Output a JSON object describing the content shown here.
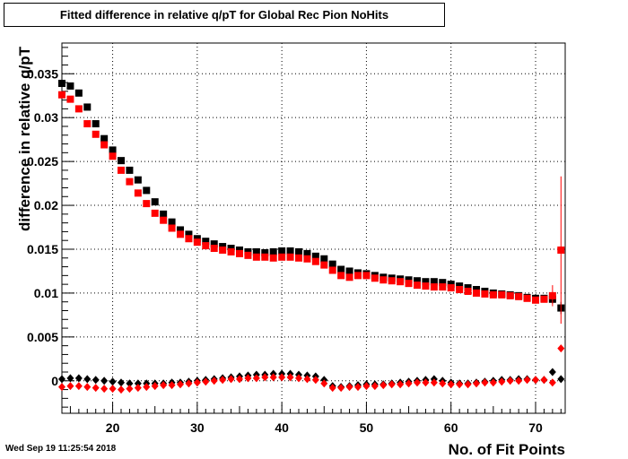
{
  "chart_data": {
    "type": "scatter",
    "title": "Fitted difference in relative q/pT for Global Rec Pion NoHits",
    "xlabel": "No. of Fit Points",
    "ylabel": "difference in relative q/pT",
    "xlim": [
      14,
      73.5
    ],
    "ylim": [
      -0.0037,
      0.0385
    ],
    "x_ticks": [
      20,
      30,
      40,
      50,
      60,
      70
    ],
    "x_tick_labels": [
      "20",
      "30",
      "40",
      "50",
      "60",
      "70"
    ],
    "y_ticks": [
      0,
      0.005,
      0.01,
      0.015,
      0.02,
      0.025,
      0.03,
      0.035
    ],
    "y_tick_labels": [
      "0",
      "0.005",
      "0.01",
      "0.015",
      "0.02",
      "0.025",
      "0.03",
      "0.035"
    ],
    "grid": true,
    "x": [
      14,
      15,
      16,
      17,
      18,
      19,
      20,
      21,
      22,
      23,
      24,
      25,
      26,
      27,
      28,
      29,
      30,
      31,
      32,
      33,
      34,
      35,
      36,
      37,
      38,
      39,
      40,
      41,
      42,
      43,
      44,
      45,
      46,
      47,
      48,
      49,
      50,
      51,
      52,
      53,
      54,
      55,
      56,
      57,
      58,
      59,
      60,
      61,
      62,
      63,
      64,
      65,
      66,
      67,
      68,
      69,
      70,
      71,
      72,
      73
    ],
    "series": [
      {
        "marker": "square",
        "color": "#000000",
        "values": [
          0.0339,
          0.0336,
          0.0328,
          0.0312,
          0.0293,
          0.0276,
          0.0263,
          0.0251,
          0.024,
          0.0229,
          0.0217,
          0.0204,
          0.019,
          0.0181,
          0.0172,
          0.0167,
          0.0162,
          0.0159,
          0.0156,
          0.0153,
          0.0151,
          0.0149,
          0.0147,
          0.0147,
          0.0146,
          0.0147,
          0.0148,
          0.0148,
          0.0147,
          0.0145,
          0.0142,
          0.0139,
          0.0133,
          0.0127,
          0.0125,
          0.0123,
          0.0122,
          0.012,
          0.0118,
          0.0117,
          0.0116,
          0.0115,
          0.0114,
          0.0113,
          0.0113,
          0.0112,
          0.011,
          0.0108,
          0.0106,
          0.0104,
          0.0102,
          0.01,
          0.0099,
          0.0098,
          0.0097,
          0.0095,
          0.0094,
          0.0094,
          0.0093,
          0.0083
        ],
        "errors": [
          0,
          0,
          0,
          0,
          0,
          0,
          0,
          0,
          0,
          0,
          0,
          0,
          0,
          0,
          0,
          0,
          0,
          0,
          0,
          0,
          0,
          0,
          0,
          0,
          0,
          0,
          0,
          0,
          0,
          0,
          0,
          0,
          0,
          0,
          0,
          0,
          0,
          0,
          0,
          0,
          0,
          0,
          0,
          0,
          0,
          0,
          0,
          0,
          0,
          0,
          0,
          0,
          0,
          0,
          0,
          0,
          0,
          0,
          0.0005,
          0.0007
        ]
      },
      {
        "marker": "square",
        "color": "#ff0000",
        "values": [
          0.0326,
          0.0321,
          0.031,
          0.0293,
          0.0281,
          0.0269,
          0.0256,
          0.024,
          0.0227,
          0.0214,
          0.0202,
          0.0191,
          0.0183,
          0.0174,
          0.0167,
          0.0162,
          0.0158,
          0.0154,
          0.0151,
          0.0149,
          0.0147,
          0.0145,
          0.0143,
          0.0141,
          0.0141,
          0.014,
          0.0141,
          0.0141,
          0.014,
          0.0139,
          0.0136,
          0.0132,
          0.0126,
          0.012,
          0.0118,
          0.012,
          0.012,
          0.0117,
          0.0115,
          0.0114,
          0.0113,
          0.0111,
          0.0109,
          0.0108,
          0.0107,
          0.0107,
          0.0106,
          0.0104,
          0.0102,
          0.01,
          0.0099,
          0.0098,
          0.0098,
          0.0097,
          0.0096,
          0.0094,
          0.0092,
          0.0093,
          0.0097,
          0.0149
        ],
        "errors": [
          0,
          0,
          0,
          0,
          0,
          0,
          0,
          0,
          0,
          0,
          0,
          0,
          0,
          0,
          0,
          0,
          0,
          0,
          0,
          0,
          0,
          0,
          0,
          0,
          0,
          0,
          0,
          0,
          0,
          0,
          0,
          0,
          0,
          0,
          0,
          0,
          0,
          0,
          0,
          0,
          0,
          0,
          0,
          0,
          0,
          0,
          0,
          0,
          0,
          0,
          0,
          0,
          0,
          0,
          0,
          0,
          0,
          0,
          0.0012,
          0.0084
        ]
      },
      {
        "marker": "diamond",
        "color": "#000000",
        "values": [
          0.0002,
          0.0003,
          0.0003,
          0.0002,
          0.0001,
          0.0,
          -0.0001,
          -0.0002,
          -0.0003,
          -0.0003,
          -0.0003,
          -0.0003,
          -0.0003,
          -0.0002,
          -0.0002,
          -0.0001,
          0.0,
          0.0001,
          0.0002,
          0.0003,
          0.0004,
          0.0005,
          0.0006,
          0.0007,
          0.0007,
          0.0008,
          0.0008,
          0.0008,
          0.0007,
          0.0006,
          0.0005,
          0.0001,
          -0.0006,
          -0.0007,
          -0.0006,
          -0.0005,
          -0.0004,
          -0.0004,
          -0.0004,
          -0.0003,
          -0.0002,
          -0.0001,
          0.0,
          0.0001,
          0.0002,
          0.0,
          -0.0002,
          -0.0003,
          -0.0003,
          -0.0002,
          -0.0001,
          0.0,
          0.0001,
          0.0001,
          0.0002,
          0.0002,
          0.0001,
          0.0001,
          0.001,
          0.0002
        ],
        "errors": [
          0,
          0,
          0,
          0,
          0,
          0,
          0,
          0,
          0,
          0,
          0,
          0,
          0,
          0,
          0,
          0,
          0,
          0,
          0,
          0,
          0,
          0,
          0,
          0,
          0,
          0,
          0,
          0,
          0,
          0,
          0,
          0,
          0,
          0,
          0,
          0,
          0,
          0,
          0,
          0,
          0,
          0,
          0,
          0,
          0,
          0,
          0,
          0,
          0,
          0,
          0,
          0,
          0,
          0,
          0,
          0,
          0,
          0,
          0,
          0
        ]
      },
      {
        "marker": "diamond",
        "color": "#ff0000",
        "values": [
          -0.0007,
          -0.0006,
          -0.0006,
          -0.0007,
          -0.0008,
          -0.0009,
          -0.0009,
          -0.001,
          -0.0009,
          -0.0008,
          -0.0007,
          -0.0006,
          -0.0005,
          -0.0005,
          -0.0004,
          -0.0003,
          -0.0002,
          -0.0001,
          0.0,
          0.0001,
          0.0002,
          0.0002,
          0.0003,
          0.0003,
          0.0004,
          0.0004,
          0.0004,
          0.0004,
          0.0003,
          0.0002,
          0.0001,
          -0.0003,
          -0.0008,
          -0.0008,
          -0.0007,
          -0.0007,
          -0.0006,
          -0.0006,
          -0.0005,
          -0.0004,
          -0.0004,
          -0.0003,
          -0.0002,
          -0.0002,
          -0.0002,
          -0.0003,
          -0.0004,
          -0.0004,
          -0.0004,
          -0.0003,
          -0.0002,
          -0.0002,
          -0.0001,
          0.0,
          0.0,
          0.0001,
          0.0001,
          0.0001,
          -0.0002,
          0.0037
        ],
        "errors": [
          0,
          0,
          0,
          0,
          0,
          0,
          0,
          0,
          0,
          0,
          0,
          0,
          0,
          0,
          0,
          0,
          0,
          0,
          0,
          0,
          0,
          0,
          0,
          0,
          0,
          0,
          0,
          0,
          0,
          0,
          0,
          0,
          0,
          0,
          0,
          0,
          0,
          0,
          0,
          0,
          0,
          0,
          0,
          0,
          0,
          0,
          0,
          0,
          0,
          0,
          0,
          0,
          0,
          0,
          0,
          0,
          0,
          0,
          0,
          0
        ]
      }
    ]
  },
  "footer": {
    "timestamp": "Wed Sep 19 11:25:54 2018"
  }
}
